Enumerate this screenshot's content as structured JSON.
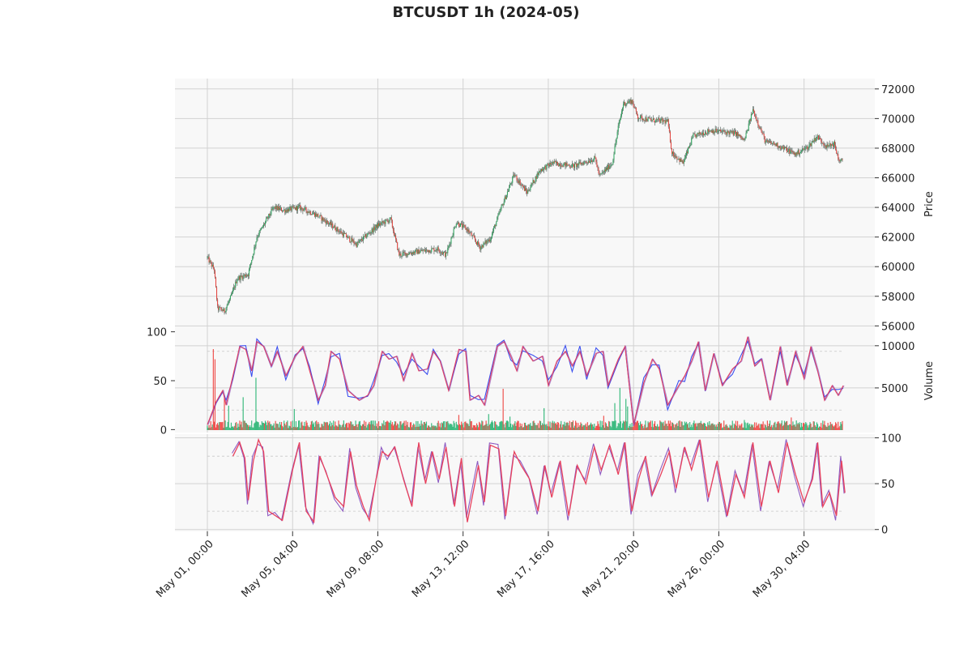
{
  "chart_data": {
    "type": "candlestick",
    "title": "BTCUSDT 1h (2024-05)",
    "x_tick_labels": [
      "May 01, 00:00",
      "May 05, 04:00",
      "May 09, 08:00",
      "May 13, 12:00",
      "May 17, 16:00",
      "May 21, 20:00",
      "May 26, 00:00",
      "May 30, 04:00"
    ],
    "x_tick_hours": [
      0,
      100,
      200,
      300,
      400,
      500,
      600,
      700
    ],
    "x_range_hours": [
      -38,
      783
    ],
    "colors": {
      "up": "#26a65b",
      "down": "#e8413c",
      "wick": "#6e7b75",
      "volume_up": "#3dbb80",
      "volume_down": "#ef5350",
      "k_line": "#3b4ff0",
      "d_line": "#e8415d",
      "k2_line": "#7b3fb8",
      "grid": "#d2d2d2",
      "panel_bg": "#f8f8f8"
    },
    "panels": [
      {
        "name": "price",
        "ylabel": "Price",
        "ylim": [
          55800,
          72700
        ],
        "yticks": [
          56000,
          58000,
          60000,
          62000,
          64000,
          66000,
          68000,
          70000,
          72000
        ],
        "price_anchors_hour_close": [
          [
            0,
            60600
          ],
          [
            8,
            59800
          ],
          [
            12,
            57200
          ],
          [
            20,
            57000
          ],
          [
            28,
            58000
          ],
          [
            35,
            59200
          ],
          [
            48,
            59500
          ],
          [
            58,
            62000
          ],
          [
            68,
            63000
          ],
          [
            78,
            64000
          ],
          [
            90,
            63800
          ],
          [
            108,
            64000
          ],
          [
            128,
            63500
          ],
          [
            148,
            62700
          ],
          [
            175,
            61500
          ],
          [
            200,
            62800
          ],
          [
            215,
            63200
          ],
          [
            225,
            60800
          ],
          [
            245,
            61000
          ],
          [
            270,
            61200
          ],
          [
            280,
            60800
          ],
          [
            292,
            63000
          ],
          [
            305,
            62500
          ],
          [
            320,
            61300
          ],
          [
            332,
            61900
          ],
          [
            345,
            64000
          ],
          [
            360,
            66200
          ],
          [
            375,
            65000
          ],
          [
            390,
            66500
          ],
          [
            405,
            67000
          ],
          [
            430,
            66800
          ],
          [
            455,
            67300
          ],
          [
            460,
            66100
          ],
          [
            475,
            67000
          ],
          [
            482,
            69400
          ],
          [
            488,
            71000
          ],
          [
            498,
            71200
          ],
          [
            505,
            70100
          ],
          [
            520,
            69900
          ],
          [
            540,
            69800
          ],
          [
            545,
            67700
          ],
          [
            558,
            67000
          ],
          [
            570,
            68800
          ],
          [
            590,
            69200
          ],
          [
            620,
            69000
          ],
          [
            630,
            68500
          ],
          [
            640,
            70600
          ],
          [
            655,
            68400
          ],
          [
            665,
            68300
          ],
          [
            690,
            67600
          ],
          [
            705,
            68100
          ],
          [
            715,
            68800
          ],
          [
            727,
            68100
          ],
          [
            735,
            68300
          ],
          [
            742,
            67000
          ],
          [
            750,
            67500
          ]
        ]
      },
      {
        "name": "volume",
        "ylabel": "Volume",
        "ylim": [
          0,
          12000
        ],
        "yticks": [
          5000,
          10000
        ],
        "left_yticks": [
          0,
          50,
          100
        ],
        "left_ylim": [
          -3,
          103
        ],
        "volume_spikes_hour_value": [
          [
            7,
            9600
          ],
          [
            9,
            8400
          ],
          [
            20,
            3800
          ],
          [
            25,
            2900
          ],
          [
            42,
            3900
          ],
          [
            57,
            6200
          ],
          [
            102,
            2500
          ],
          [
            295,
            1800
          ],
          [
            308,
            1300
          ],
          [
            330,
            1900
          ],
          [
            347,
            4900
          ],
          [
            355,
            1600
          ],
          [
            395,
            2600
          ],
          [
            465,
            1700
          ],
          [
            478,
            3200
          ],
          [
            484,
            5000
          ],
          [
            491,
            3700
          ],
          [
            493,
            2800
          ],
          [
            630,
            1200
          ],
          [
            685,
            1500
          ]
        ],
        "k_series_hour_value": [
          [
            0,
            5
          ],
          [
            10,
            28
          ],
          [
            18,
            40
          ],
          [
            22,
            25
          ],
          [
            30,
            55
          ],
          [
            38,
            85
          ],
          [
            45,
            82
          ],
          [
            52,
            60
          ],
          [
            58,
            90
          ],
          [
            66,
            85
          ],
          [
            75,
            65
          ],
          [
            82,
            80
          ],
          [
            92,
            55
          ],
          [
            103,
            75
          ],
          [
            112,
            85
          ],
          [
            120,
            60
          ],
          [
            130,
            30
          ],
          [
            138,
            45
          ],
          [
            145,
            80
          ],
          [
            155,
            72
          ],
          [
            165,
            40
          ],
          [
            178,
            30
          ],
          [
            188,
            35
          ],
          [
            195,
            45
          ],
          [
            205,
            80
          ],
          [
            213,
            72
          ],
          [
            222,
            75
          ],
          [
            230,
            50
          ],
          [
            240,
            78
          ],
          [
            248,
            60
          ],
          [
            258,
            62
          ],
          [
            265,
            80
          ],
          [
            273,
            70
          ],
          [
            283,
            40
          ],
          [
            295,
            82
          ],
          [
            303,
            80
          ],
          [
            308,
            30
          ],
          [
            318,
            35
          ],
          [
            325,
            25
          ],
          [
            340,
            85
          ],
          [
            348,
            90
          ],
          [
            356,
            75
          ],
          [
            363,
            60
          ],
          [
            370,
            85
          ],
          [
            382,
            70
          ],
          [
            393,
            75
          ],
          [
            400,
            45
          ],
          [
            410,
            70
          ],
          [
            420,
            80
          ],
          [
            428,
            65
          ],
          [
            437,
            80
          ],
          [
            445,
            55
          ],
          [
            456,
            78
          ],
          [
            464,
            80
          ],
          [
            470,
            45
          ],
          [
            482,
            72
          ],
          [
            490,
            85
          ],
          [
            500,
            5
          ],
          [
            512,
            48
          ],
          [
            522,
            72
          ],
          [
            530,
            62
          ],
          [
            540,
            25
          ],
          [
            553,
            45
          ],
          [
            560,
            55
          ],
          [
            568,
            70
          ],
          [
            576,
            90
          ],
          [
            584,
            40
          ],
          [
            594,
            78
          ],
          [
            604,
            45
          ],
          [
            616,
            62
          ],
          [
            626,
            70
          ],
          [
            634,
            95
          ],
          [
            642,
            65
          ],
          [
            650,
            72
          ],
          [
            660,
            30
          ],
          [
            672,
            85
          ],
          [
            680,
            45
          ],
          [
            690,
            80
          ],
          [
            700,
            52
          ],
          [
            708,
            85
          ],
          [
            716,
            60
          ],
          [
            724,
            30
          ],
          [
            733,
            45
          ],
          [
            740,
            35
          ],
          [
            746,
            45
          ]
        ]
      },
      {
        "name": "stochastic",
        "yticks": [
          0,
          50,
          100
        ],
        "ylim": [
          -2,
          104
        ],
        "ref_lines": [
          20,
          80
        ],
        "d_series_hour_value": [
          [
            30,
            80
          ],
          [
            38,
            95
          ],
          [
            44,
            78
          ],
          [
            48,
            32
          ],
          [
            54,
            75
          ],
          [
            60,
            98
          ],
          [
            66,
            85
          ],
          [
            72,
            20
          ],
          [
            80,
            15
          ],
          [
            88,
            10
          ],
          [
            100,
            65
          ],
          [
            108,
            95
          ],
          [
            116,
            20
          ],
          [
            125,
            8
          ],
          [
            132,
            80
          ],
          [
            140,
            60
          ],
          [
            150,
            35
          ],
          [
            160,
            25
          ],
          [
            168,
            85
          ],
          [
            175,
            48
          ],
          [
            183,
            25
          ],
          [
            190,
            10
          ],
          [
            198,
            55
          ],
          [
            205,
            85
          ],
          [
            212,
            80
          ],
          [
            220,
            90
          ],
          [
            230,
            55
          ],
          [
            240,
            25
          ],
          [
            248,
            95
          ],
          [
            256,
            50
          ],
          [
            264,
            85
          ],
          [
            272,
            55
          ],
          [
            280,
            90
          ],
          [
            290,
            25
          ],
          [
            298,
            78
          ],
          [
            305,
            8
          ],
          [
            318,
            70
          ],
          [
            325,
            30
          ],
          [
            332,
            92
          ],
          [
            342,
            88
          ],
          [
            350,
            15
          ],
          [
            360,
            85
          ],
          [
            368,
            70
          ],
          [
            378,
            55
          ],
          [
            388,
            20
          ],
          [
            396,
            70
          ],
          [
            404,
            35
          ],
          [
            414,
            75
          ],
          [
            424,
            15
          ],
          [
            434,
            70
          ],
          [
            444,
            50
          ],
          [
            454,
            90
          ],
          [
            462,
            65
          ],
          [
            472,
            92
          ],
          [
            482,
            60
          ],
          [
            490,
            95
          ],
          [
            498,
            20
          ],
          [
            506,
            55
          ],
          [
            514,
            80
          ],
          [
            522,
            38
          ],
          [
            532,
            60
          ],
          [
            542,
            85
          ],
          [
            550,
            45
          ],
          [
            560,
            90
          ],
          [
            568,
            65
          ],
          [
            578,
            98
          ],
          [
            588,
            35
          ],
          [
            598,
            75
          ],
          [
            610,
            15
          ],
          [
            620,
            60
          ],
          [
            630,
            35
          ],
          [
            640,
            95
          ],
          [
            650,
            25
          ],
          [
            660,
            75
          ],
          [
            670,
            40
          ],
          [
            680,
            95
          ],
          [
            690,
            60
          ],
          [
            700,
            30
          ],
          [
            710,
            55
          ],
          [
            716,
            95
          ],
          [
            722,
            25
          ],
          [
            730,
            40
          ],
          [
            738,
            15
          ],
          [
            744,
            75
          ],
          [
            748,
            40
          ]
        ]
      }
    ]
  }
}
